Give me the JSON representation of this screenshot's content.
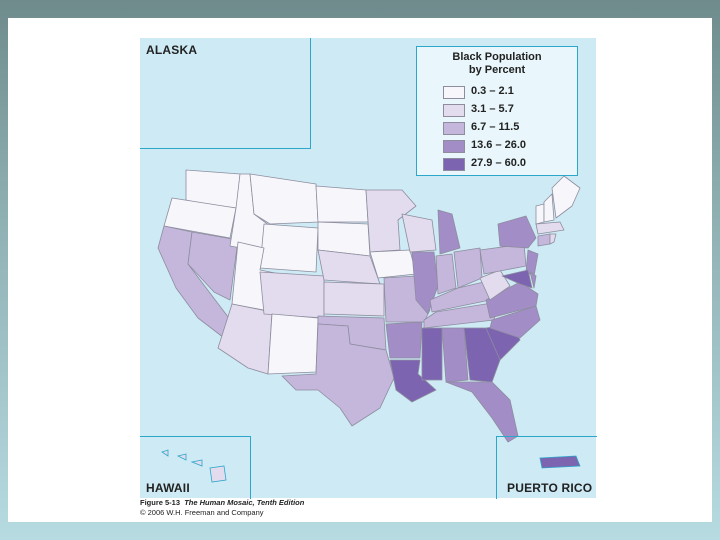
{
  "map": {
    "legend": {
      "title_line1": "Black Population",
      "title_line2": "by Percent",
      "classes": [
        {
          "label": "0.3 – 2.1",
          "color": "#f7f6fb"
        },
        {
          "label": "3.1 – 5.7",
          "color": "#e3dbee"
        },
        {
          "label": "6.7 – 11.5",
          "color": "#c5b7dc"
        },
        {
          "label": "13.6 – 26.0",
          "color": "#a28dc7"
        },
        {
          "label": "27.9 – 60.0",
          "color": "#7d64b0"
        }
      ]
    },
    "insets": {
      "alaska": "ALASKA",
      "hawaii": "HAWAII",
      "puerto_rico": "PUERTO RICO"
    },
    "colors": {
      "water": "#cdeaf5",
      "inset_border": "#2aa7c9",
      "state_border": "#8d8d9e"
    }
  },
  "caption": {
    "figure": "Figure 5-13",
    "book": "The Human Mosaic, Tenth Edition",
    "credit": "© 2006 W.H. Freeman and Company"
  }
}
